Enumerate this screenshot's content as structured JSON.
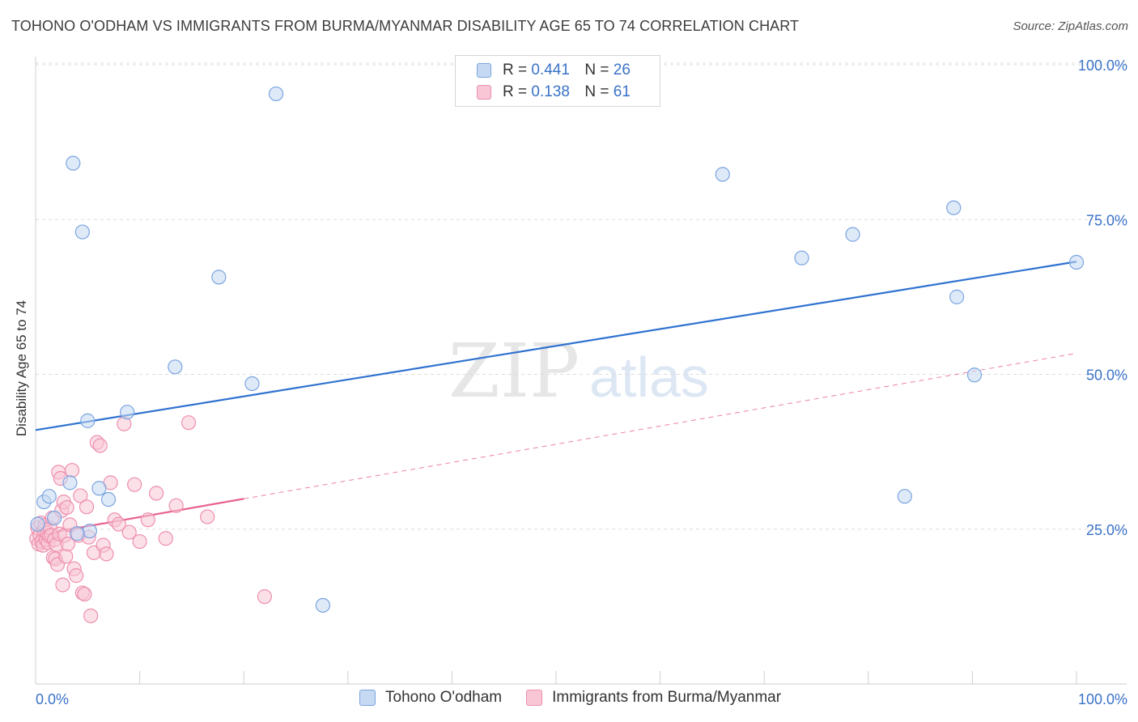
{
  "title": "TOHONO O'ODHAM VS IMMIGRANTS FROM BURMA/MYANMAR DISABILITY AGE 65 TO 74 CORRELATION CHART",
  "source": "Source: ZipAtlas.com",
  "watermark": {
    "zip": "ZIP",
    "atlas": "atlas"
  },
  "legend": {
    "r_label": "R =",
    "n_label": "N =",
    "series1": {
      "r": "0.441",
      "n": "26"
    },
    "series2": {
      "r": "0.138",
      "n": "61"
    }
  },
  "colors": {
    "blue_fill": "#c5d9f3",
    "blue_stroke": "#7aa4e0",
    "blue_line": "#2f72d0",
    "pink_fill": "#f8c6d5",
    "pink_stroke": "#ee8fae",
    "pink_line": "#e8628e",
    "axis_label": "#3a72c8"
  },
  "chart_data": {
    "type": "scatter",
    "title": "TOHONO O'ODHAM VS IMMIGRANTS FROM BURMA/MYANMAR DISABILITY AGE 65 TO 74 CORRELATION CHART",
    "xlabel": "",
    "ylabel": "Disability Age 65 to 74",
    "xlim": [
      0,
      100
    ],
    "ylim": [
      0,
      102
    ],
    "x_tick_labels": [
      "0.0%",
      "100.0%"
    ],
    "y_ticks": [
      25,
      50,
      75,
      100
    ],
    "y_tick_labels": [
      "25.0%",
      "50.0%",
      "75.0%",
      "100.0%"
    ],
    "grid": true,
    "series": [
      {
        "name": "Tohono O'odham",
        "color": "blue",
        "x": [
          0.8,
          1.3,
          1.8,
          3.3,
          3.6,
          4.5,
          5.0,
          5.2,
          6.1,
          7.0,
          8.8,
          13.4,
          17.6,
          20.8,
          23.1,
          27.6,
          66.0,
          73.6,
          78.5,
          83.5,
          88.2,
          88.5,
          90.2,
          100.0,
          0.2,
          4.0
        ],
        "y": [
          29.4,
          30.3,
          26.8,
          32.5,
          84.1,
          73.0,
          42.5,
          24.7,
          31.6,
          29.8,
          43.9,
          51.2,
          65.7,
          48.5,
          95.3,
          12.7,
          82.3,
          68.8,
          72.6,
          30.3,
          76.9,
          62.5,
          49.9,
          68.1,
          25.8,
          24.3
        ]
      },
      {
        "name": "Immigrants from Burma/Myanmar",
        "color": "pink",
        "x": [
          0.1,
          0.2,
          0.3,
          0.4,
          0.5,
          0.6,
          0.7,
          0.8,
          0.9,
          1.0,
          1.1,
          1.2,
          1.3,
          1.4,
          1.5,
          1.6,
          1.7,
          1.8,
          1.9,
          2.0,
          2.1,
          2.2,
          2.3,
          2.4,
          2.5,
          2.6,
          2.7,
          2.8,
          2.9,
          3.0,
          3.1,
          3.3,
          3.5,
          3.7,
          3.9,
          4.1,
          4.3,
          4.5,
          4.7,
          4.9,
          5.1,
          5.3,
          5.6,
          5.9,
          6.2,
          6.5,
          6.8,
          7.2,
          7.6,
          8.0,
          8.5,
          9.0,
          9.5,
          10.0,
          10.8,
          11.6,
          12.5,
          13.5,
          14.7,
          16.5,
          22.0
        ],
        "y": [
          23.5,
          25.2,
          22.6,
          24.1,
          26.0,
          23.0,
          22.4,
          24.8,
          25.6,
          23.3,
          24.4,
          22.8,
          23.9,
          25.2,
          24.0,
          26.8,
          20.4,
          23.3,
          20.2,
          22.5,
          19.3,
          34.2,
          24.2,
          33.2,
          28.0,
          16.0,
          29.4,
          24.0,
          20.6,
          28.5,
          22.6,
          25.7,
          34.5,
          18.6,
          17.5,
          24.0,
          30.4,
          14.7,
          14.5,
          28.6,
          23.7,
          11.0,
          21.2,
          39.0,
          38.5,
          22.4,
          21.0,
          32.5,
          26.5,
          25.8,
          42.0,
          24.5,
          32.2,
          23.0,
          26.5,
          30.8,
          23.5,
          28.8,
          42.2,
          27.0,
          14.1
        ]
      }
    ],
    "trend_lines": [
      {
        "series": "Tohono O'odham",
        "x": [
          0,
          100
        ],
        "y": [
          41.0,
          68.2
        ],
        "style": "solid"
      },
      {
        "series": "Immigrants from Burma/Myanmar",
        "x": [
          0,
          20
        ],
        "y": [
          24.0,
          29.9
        ],
        "style": "solid"
      },
      {
        "series": "Immigrants from Burma/Myanmar",
        "x": [
          20,
          100
        ],
        "y": [
          29.9,
          53.4
        ],
        "style": "dashed"
      }
    ]
  },
  "bottom_legend": [
    "Tohono O'odham",
    "Immigrants from Burma/Myanmar"
  ]
}
